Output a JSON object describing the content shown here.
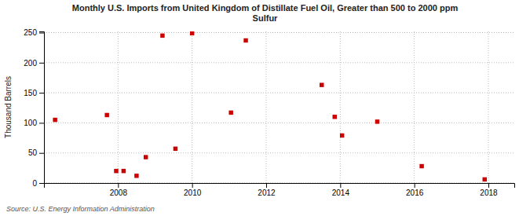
{
  "chart_data": {
    "type": "scatter",
    "title": "Monthly U.S. Imports from United Kingdom of Distillate Fuel Oil, Greater than 500 to 2000 ppm\nSulfur",
    "ylabel": "Thousand Barrels",
    "source": "Source: U.S. Energy Information Administration",
    "x": [
      2006.3,
      2007.7,
      2007.95,
      2008.15,
      2008.5,
      2008.75,
      2009.2,
      2009.55,
      2010.0,
      2011.05,
      2011.45,
      2013.5,
      2013.85,
      2014.05,
      2015.0,
      2016.2,
      2017.9
    ],
    "values": [
      105,
      113,
      20,
      20,
      12,
      43,
      245,
      57,
      249,
      117,
      237,
      163,
      110,
      79,
      102,
      28,
      6
    ],
    "color": "#cc0000",
    "marker": "square",
    "xlim": [
      2006.0,
      2018.7
    ],
    "ylim": [
      0,
      252
    ],
    "xticks": [
      2008,
      2010,
      2012,
      2014,
      2016,
      2018
    ],
    "yticks": [
      0,
      50,
      100,
      150,
      200,
      250
    ],
    "grid": true
  }
}
